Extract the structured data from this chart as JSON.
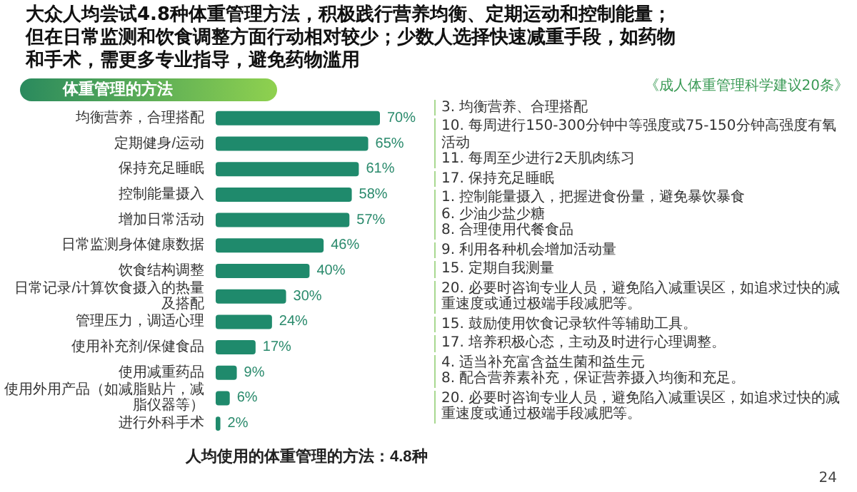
{
  "chart_data": {
    "type": "bar",
    "orientation": "horizontal",
    "title": "大众人均尝试4.8种体重管理方法，积极践行营养均衡、定期运动和控制能量；但在日常监测和饮食调整方面行动相对较少；少数人选择快速减重手段，如药物和手术，需更多专业指导，避免药物滥用",
    "subtitle": "体重管理的方法",
    "categories": [
      "均衡营养，合理搭配",
      "定期健身/运动",
      "保持充足睡眠",
      "控制能量摄入",
      "增加日常活动",
      "日常监测身体健康数据",
      "饮食结构调整",
      "日常记录/计算饮食摄入的热量及搭配",
      "管理压力，调适心理",
      "使用补充剂/保健食品",
      "使用减重药品",
      "使用外用产品（如减脂贴片，减脂仪器等）",
      "进行外科手术"
    ],
    "values": [
      70,
      65,
      61,
      58,
      57,
      46,
      40,
      30,
      24,
      17,
      9,
      6,
      2
    ],
    "value_labels": [
      "70%",
      "65%",
      "61%",
      "58%",
      "57%",
      "46%",
      "40%",
      "30%",
      "24%",
      "17%",
      "9%",
      "6%",
      "2%"
    ],
    "color": "#1f8a6c",
    "annotations": [
      "《成人体重管理科学建议20条》",
      "3. 均衡营养、合理搭配",
      "10. 每周进行150-300分钟中等强度或75-150分钟高强度有氧活动\n11. 每周至少进行2天肌肉练习",
      "17. 保持充足睡眠",
      "1. 控制能量摄入，把握进食份量，避免暴饮暴食\n6. 少油少盐少糖\n8. 合理使用代餐食品",
      "9. 利用各种机会增加活动量",
      "15. 定期自我测量",
      "20. 必要时咨询专业人员，避免陷入减重误区，如追求过快的减重速度或通过极端手段减肥等。",
      "15. 鼓励使用饮食记录软件等辅助工具。",
      "17. 培养积极心态，主动及时进行心理调整。",
      "4. 适当补充富含益生菌和益生元\n8. 配合营养素补充，保证营养摄入均衡和充足。",
      "20. 必要时咨询专业人员，避免陷入减重误区，如追求过快的减重速度或通过极端手段减肥等。",
      "人均使用的体重管理的方法：4.8种",
      "24"
    ]
  }
}
